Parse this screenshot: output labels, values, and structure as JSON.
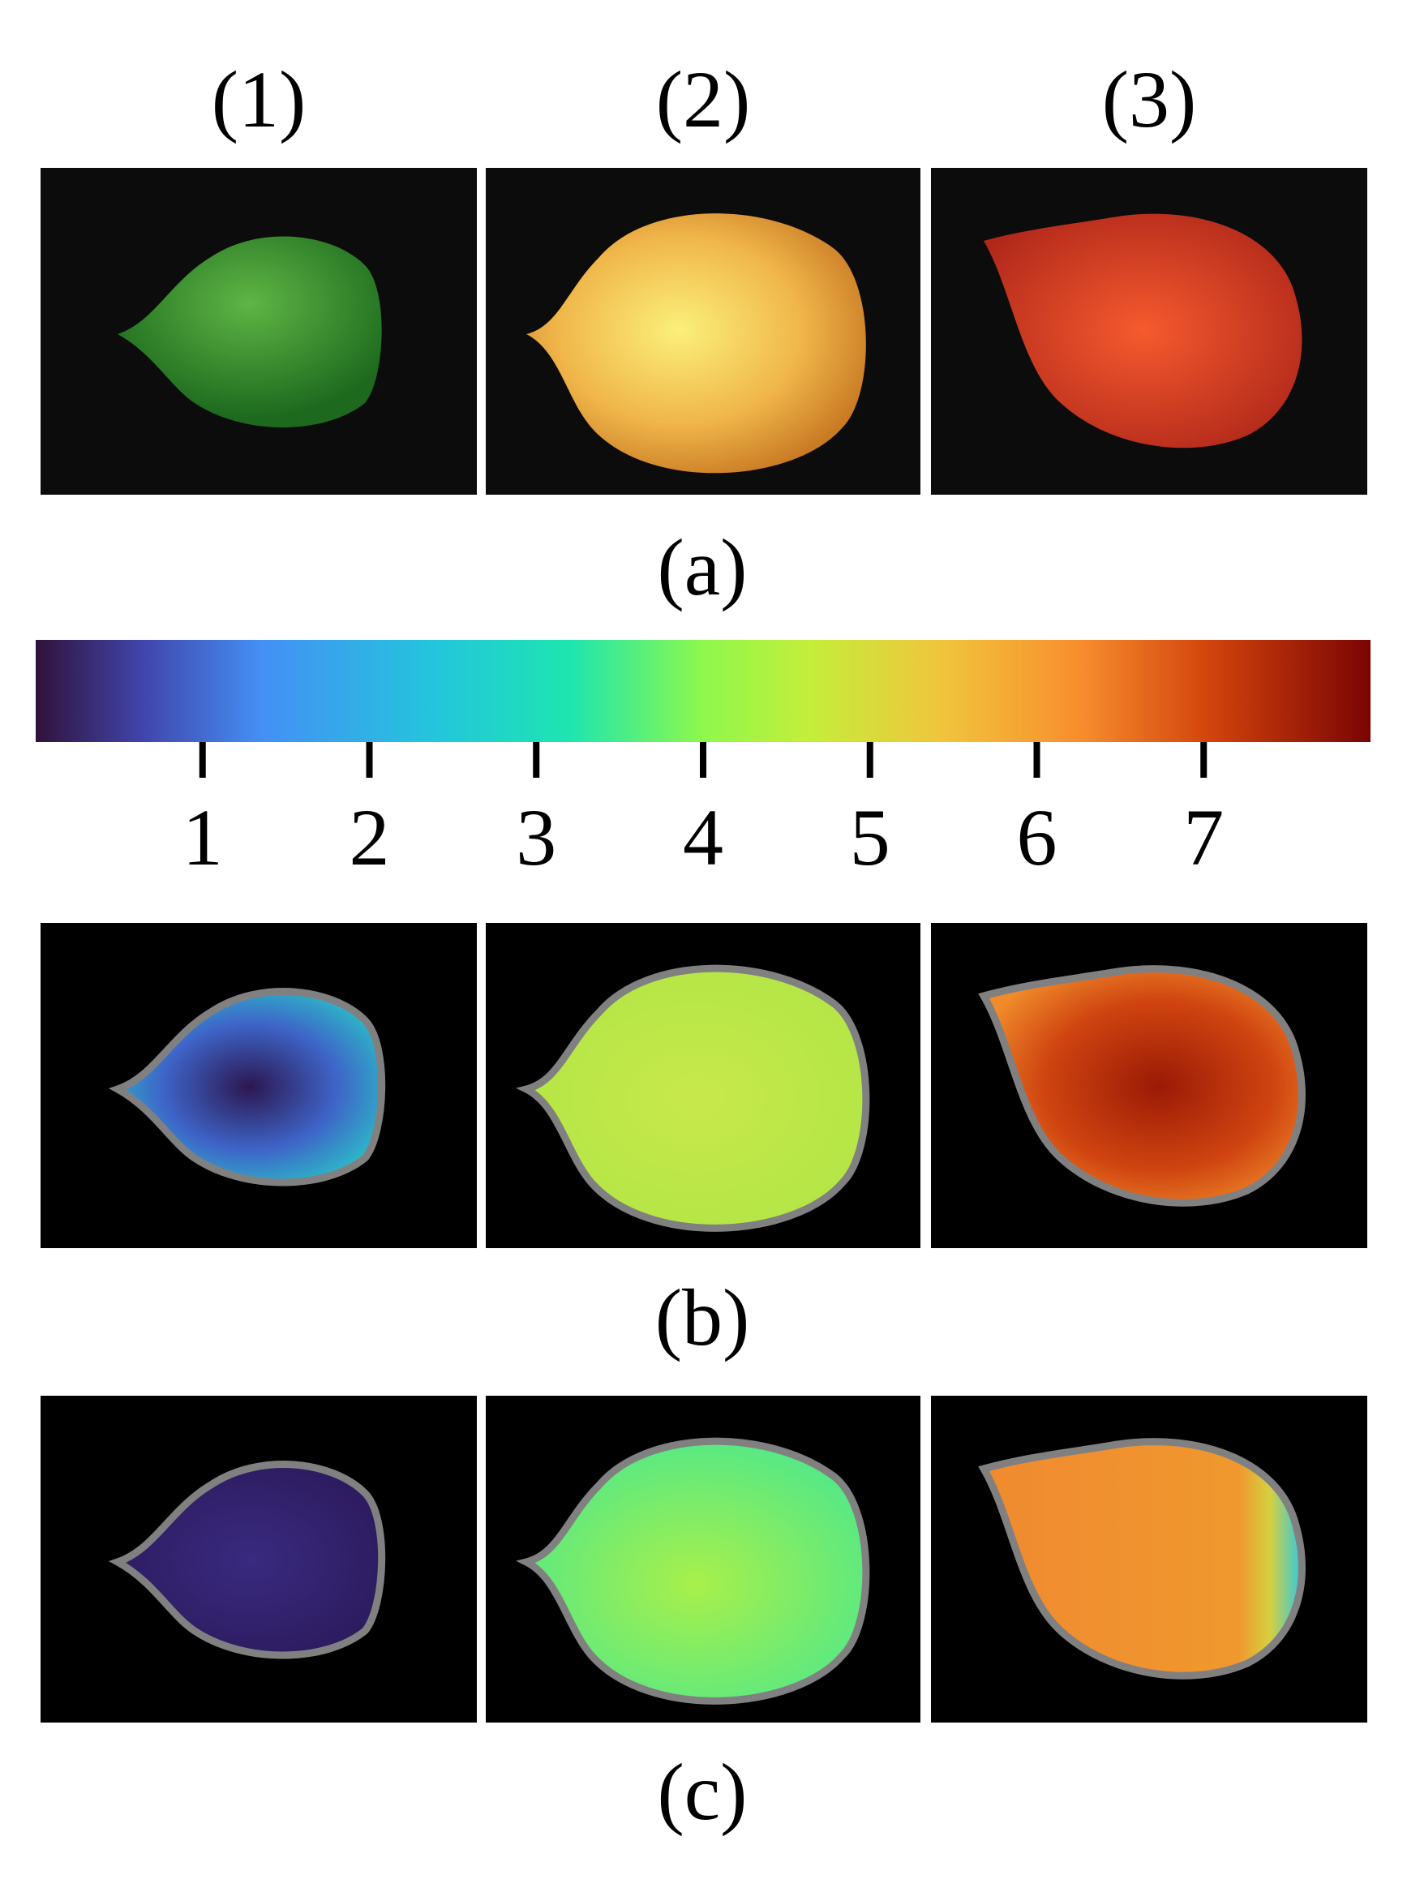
{
  "column_labels": [
    "(1)",
    "(2)",
    "(3)"
  ],
  "row_labels": [
    "(a)",
    "(b)",
    "(c)"
  ],
  "colorbar": {
    "lim": [
      0,
      8
    ],
    "ticks": [
      1,
      2,
      3,
      4,
      5,
      6,
      7
    ]
  }
}
